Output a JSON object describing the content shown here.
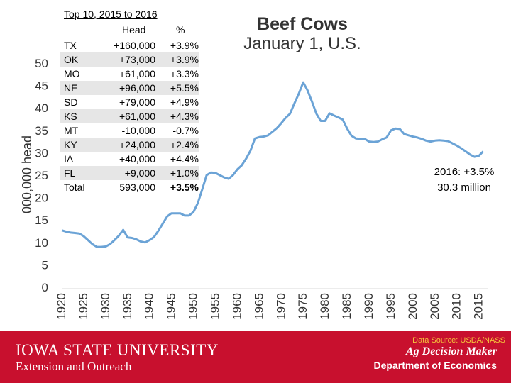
{
  "chart_data": {
    "type": "line",
    "title": "Beef Cows",
    "subtitle": "January 1, U.S.",
    "ylabel": "000,000 head",
    "xlabel": "",
    "ylim": [
      0,
      50
    ],
    "xlim": [
      1920,
      2017
    ],
    "y_ticks": [
      "0",
      "5",
      "10",
      "15",
      "20",
      "25",
      "30",
      "35",
      "40",
      "45",
      "50"
    ],
    "x_ticks": [
      "1920",
      "1925",
      "1930",
      "1935",
      "1940",
      "1945",
      "1950",
      "1955",
      "1960",
      "1965",
      "1970",
      "1975",
      "1980",
      "1985",
      "1990",
      "1995",
      "2000",
      "2005",
      "2010",
      "2015"
    ],
    "grid": false,
    "line_color": "#6ba3d6",
    "series": [
      {
        "name": "Beef Cows",
        "x": [
          1920,
          1921,
          1922,
          1923,
          1924,
          1925,
          1926,
          1927,
          1928,
          1929,
          1930,
          1931,
          1932,
          1933,
          1934,
          1935,
          1936,
          1937,
          1938,
          1939,
          1940,
          1941,
          1942,
          1943,
          1944,
          1945,
          1946,
          1947,
          1948,
          1949,
          1950,
          1951,
          1952,
          1953,
          1954,
          1955,
          1956,
          1957,
          1958,
          1959,
          1960,
          1961,
          1962,
          1963,
          1964,
          1965,
          1966,
          1967,
          1968,
          1969,
          1970,
          1971,
          1972,
          1973,
          1974,
          1975,
          1976,
          1977,
          1978,
          1979,
          1980,
          1981,
          1982,
          1983,
          1984,
          1985,
          1986,
          1987,
          1988,
          1989,
          1990,
          1991,
          1992,
          1993,
          1994,
          1995,
          1996,
          1997,
          1998,
          1999,
          2000,
          2001,
          2002,
          2003,
          2004,
          2005,
          2006,
          2007,
          2008,
          2009,
          2010,
          2011,
          2012,
          2013,
          2014,
          2015,
          2016
        ],
        "values": [
          12.7,
          12.4,
          12.2,
          12.1,
          12.0,
          11.4,
          10.5,
          9.6,
          9.0,
          9.0,
          9.1,
          9.6,
          10.5,
          11.5,
          12.8,
          11.1,
          11.0,
          10.7,
          10.2,
          10.0,
          10.5,
          11.2,
          12.6,
          14.2,
          15.8,
          16.5,
          16.5,
          16.5,
          16.0,
          16.0,
          16.8,
          18.8,
          21.8,
          25.0,
          25.6,
          25.5,
          25.0,
          24.5,
          24.2,
          25.0,
          26.3,
          27.2,
          28.7,
          30.5,
          33.2,
          33.5,
          33.6,
          33.9,
          34.7,
          35.5,
          36.6,
          37.8,
          38.7,
          41.0,
          43.2,
          45.7,
          43.9,
          41.4,
          38.7,
          37.1,
          37.1,
          38.8,
          38.3,
          37.9,
          37.4,
          35.4,
          33.8,
          33.2,
          33.1,
          33.1,
          32.5,
          32.4,
          32.5,
          33.0,
          33.4,
          35.0,
          35.4,
          35.3,
          34.2,
          33.9,
          33.6,
          33.4,
          33.1,
          32.7,
          32.5,
          32.7,
          32.8,
          32.7,
          32.6,
          32.1,
          31.6,
          31.0,
          30.3,
          29.6,
          29.1,
          29.3,
          30.3
        ]
      }
    ]
  },
  "top10": {
    "title": "Top 10, 2015 to 2016",
    "col_head": "Head",
    "col_pct": "%",
    "rows": [
      {
        "state": "TX",
        "head": "+160,000",
        "pct": "+3.9%"
      },
      {
        "state": "OK",
        "head": "+73,000",
        "pct": "+3.9%"
      },
      {
        "state": "MO",
        "head": "+61,000",
        "pct": "+3.3%"
      },
      {
        "state": "NE",
        "head": "+96,000",
        "pct": "+5.5%"
      },
      {
        "state": "SD",
        "head": "+79,000",
        "pct": "+4.9%"
      },
      {
        "state": "KS",
        "head": "+61,000",
        "pct": "+4.3%"
      },
      {
        "state": "MT",
        "head": "-10,000",
        "pct": "-0.7%"
      },
      {
        "state": "KY",
        "head": "+24,000",
        "pct": "+2.4%"
      },
      {
        "state": "IA",
        "head": "+40,000",
        "pct": "+4.4%"
      },
      {
        "state": "FL",
        "head": "+9,000",
        "pct": "+1.0%"
      },
      {
        "state": "Total",
        "head": "593,000",
        "pct": "+3.5%"
      }
    ]
  },
  "annotation": {
    "line1": "2016: +3.5%",
    "line2": "30.3 million"
  },
  "footer": {
    "source": "Data Source: USDA/NASS",
    "university": "IOWA STATE UNIVERSITY",
    "extension": "Extension and Outreach",
    "agdm": "Ag Decision Maker",
    "department": "Department of Economics"
  }
}
